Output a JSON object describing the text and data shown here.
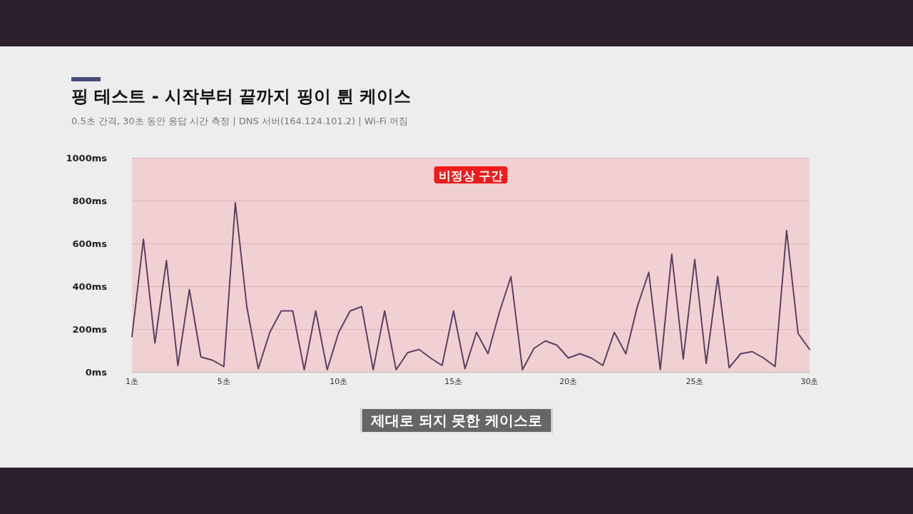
{
  "chart_data": {
    "type": "line",
    "title": "핑 테스트 - 시작부터 끝까지 핑이 튄 케이스",
    "subtitle": "0.5초 간격, 30초 동안 응답 시간 측정 | DNS 서버(164.124.101.2) | Wi-Fi 꺼짐",
    "annotations": [
      "제대로 되지 못한 케이스로"
    ],
    "categories": [
      "1초",
      null,
      null,
      null,
      null,
      null,
      null,
      null,
      "5초",
      null,
      null,
      null,
      null,
      null,
      null,
      null,
      null,
      null,
      "10초",
      null,
      null,
      null,
      null,
      null,
      null,
      null,
      null,
      null,
      "15초",
      null,
      null,
      null,
      null,
      null,
      null,
      null,
      null,
      null,
      "20초",
      null,
      null,
      null,
      null,
      null,
      null,
      null,
      null,
      null,
      null,
      "25초",
      null,
      null,
      null,
      null,
      null,
      null,
      null,
      null,
      null,
      "30초"
    ],
    "series": [
      {
        "color": "#5b4163",
        "values": [
          165,
          620,
          135,
          520,
          30,
          385,
          70,
          55,
          25,
          790,
          305,
          15,
          185,
          285,
          285,
          10,
          285,
          10,
          185,
          285,
          305,
          10,
          285,
          10,
          90,
          105,
          65,
          30,
          285,
          15,
          185,
          85,
          280,
          445,
          10,
          110,
          145,
          125,
          65,
          85,
          65,
          30,
          185,
          85,
          305,
          465,
          10,
          550,
          60,
          525,
          40,
          445,
          20,
          85,
          95,
          65,
          25,
          660,
          180,
          105
        ]
      }
    ],
    "ylim": [
      0,
      1000
    ],
    "yticks": [
      {
        "value": 0,
        "label": "0ms"
      },
      {
        "value": 200,
        "label": "200ms"
      },
      {
        "value": 400,
        "label": "400ms"
      },
      {
        "value": 600,
        "label": "600ms"
      },
      {
        "value": 800,
        "label": "800ms"
      },
      {
        "value": 1000,
        "label": "1000ms"
      }
    ],
    "grid": "y",
    "line_style": "solid",
    "bands": [
      {
        "axis": "y",
        "from": 0,
        "to": 1000,
        "label": "비정상 구간",
        "color": "#f0d0d2"
      }
    ]
  }
}
